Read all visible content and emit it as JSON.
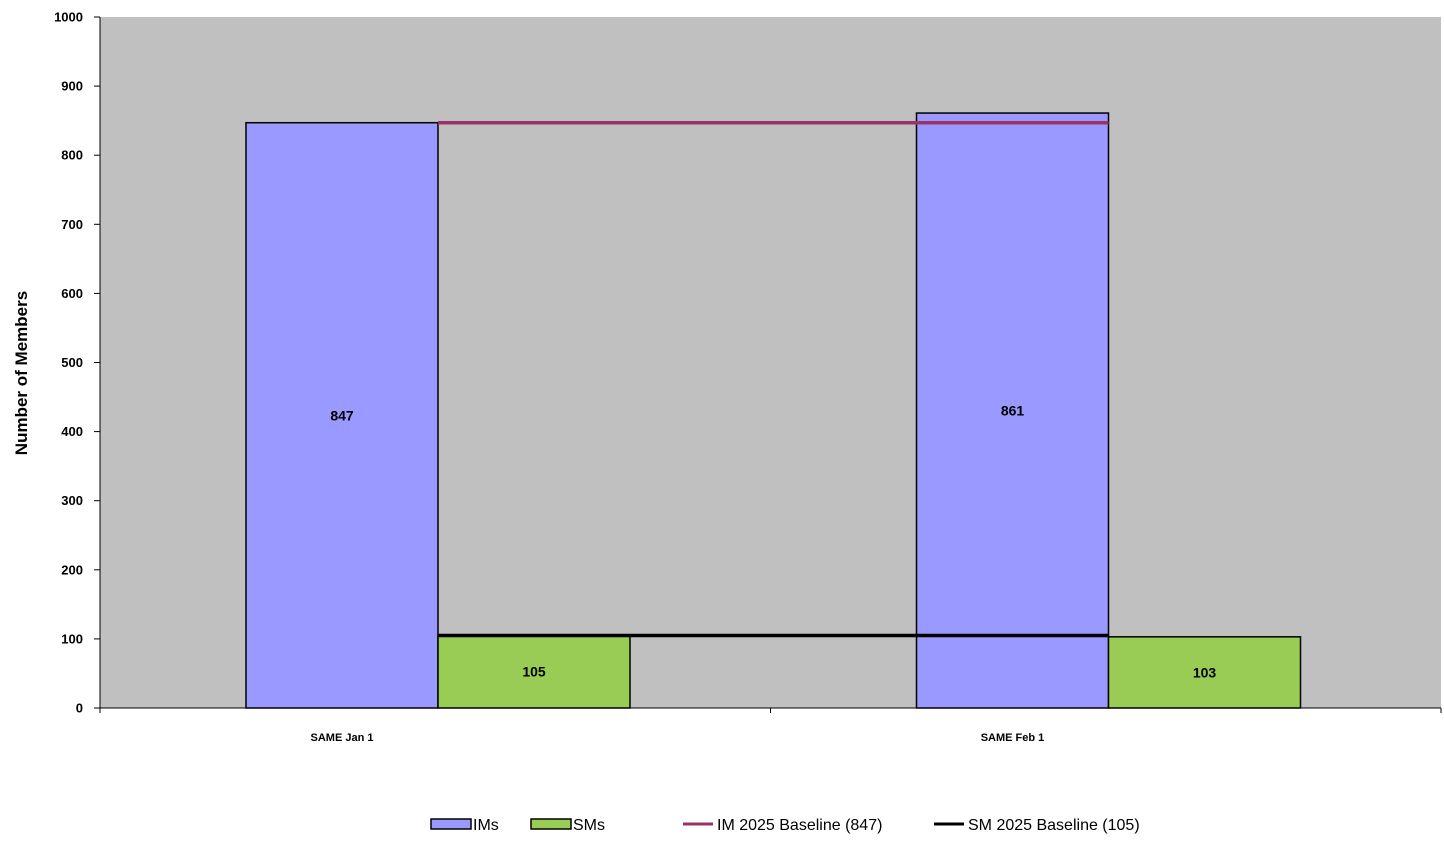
{
  "chart_data": {
    "type": "bar",
    "title": "",
    "xlabel": "",
    "ylabel": "Number of Members",
    "ylim": [
      0,
      1000
    ],
    "yticks": [
      0,
      100,
      200,
      300,
      400,
      500,
      600,
      700,
      800,
      900,
      1000
    ],
    "categories": [
      "SAME Jan 1",
      "SAME Feb 1"
    ],
    "series": [
      {
        "name": "IMs",
        "kind": "bar",
        "values": [
          847,
          861
        ],
        "color": "#9999ff"
      },
      {
        "name": "SMs",
        "kind": "bar",
        "values": [
          105,
          103
        ],
        "color": "#99cc55"
      }
    ],
    "reference_lines": [
      {
        "name": "IM 2025 Baseline (847)",
        "value": 847,
        "color": "#993366"
      },
      {
        "name": "SM 2025 Baseline (105)",
        "value": 105,
        "color": "#000000"
      }
    ],
    "data_labels": [
      "847",
      "105",
      "861",
      "103"
    ],
    "plot_background": "#c0c0c0",
    "bar_border_color": "#000000",
    "grid": false,
    "legend_position": "bottom"
  }
}
